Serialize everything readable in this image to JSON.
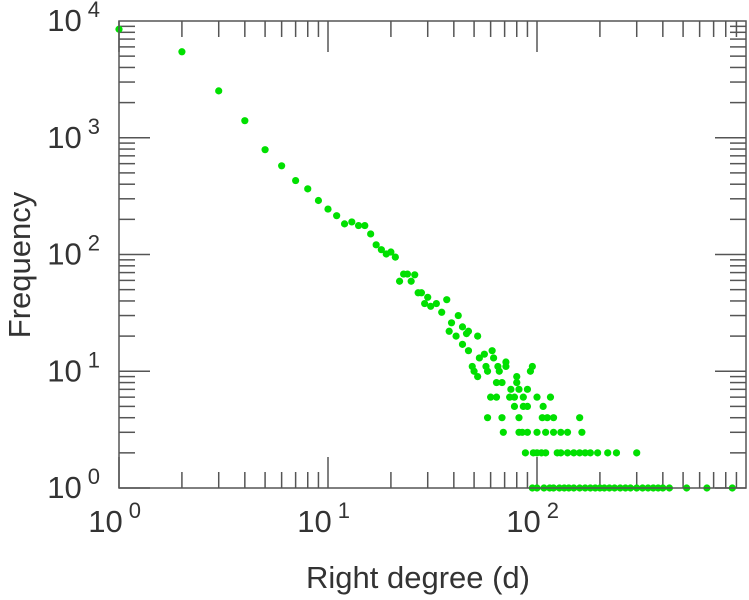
{
  "chart_data": {
    "type": "scatter",
    "title": "",
    "xlabel": "Right degree (d)",
    "ylabel": "Frequency",
    "xscale": "log",
    "yscale": "log",
    "xlim": [
      1,
      1000
    ],
    "ylim": [
      1,
      10000
    ],
    "x_ticks": [
      {
        "base": "10",
        "exp": "0"
      },
      {
        "base": "10",
        "exp": "1"
      },
      {
        "base": "10",
        "exp": "2"
      }
    ],
    "y_ticks": [
      {
        "base": "10",
        "exp": "0"
      },
      {
        "base": "10",
        "exp": "1"
      },
      {
        "base": "10",
        "exp": "2"
      },
      {
        "base": "10",
        "exp": "3"
      },
      {
        "base": "10",
        "exp": "4"
      }
    ],
    "grid": false,
    "color": "#00e000",
    "points": [
      [
        1,
        8500
      ],
      [
        2,
        5450
      ],
      [
        3,
        2520
      ],
      [
        4,
        1400
      ],
      [
        5,
        790
      ],
      [
        6,
        575
      ],
      [
        7,
        430
      ],
      [
        8,
        365
      ],
      [
        9,
        290
      ],
      [
        10,
        245
      ],
      [
        11,
        215
      ],
      [
        12,
        183
      ],
      [
        13,
        190
      ],
      [
        14,
        177
      ],
      [
        15,
        177
      ],
      [
        16,
        150
      ],
      [
        17,
        121
      ],
      [
        18,
        110
      ],
      [
        19,
        101
      ],
      [
        20,
        105
      ],
      [
        21,
        95
      ],
      [
        22,
        59
      ],
      [
        23,
        68
      ],
      [
        24,
        68
      ],
      [
        25,
        59
      ],
      [
        26,
        67
      ],
      [
        27,
        47
      ],
      [
        28,
        47
      ],
      [
        29,
        38
      ],
      [
        30,
        43
      ],
      [
        31,
        36
      ],
      [
        33,
        38
      ],
      [
        35,
        32
      ],
      [
        37,
        41
      ],
      [
        38,
        22
      ],
      [
        39,
        26
      ],
      [
        41,
        20
      ],
      [
        42,
        30
      ],
      [
        44,
        24
      ],
      [
        44,
        17
      ],
      [
        46,
        21
      ],
      [
        47,
        22
      ],
      [
        47,
        15
      ],
      [
        49,
        11
      ],
      [
        50,
        10
      ],
      [
        52,
        20
      ],
      [
        52,
        9
      ],
      [
        53,
        13
      ],
      [
        56,
        14
      ],
      [
        57,
        11
      ],
      [
        58,
        10
      ],
      [
        58,
        4
      ],
      [
        60,
        6
      ],
      [
        61,
        15
      ],
      [
        62,
        13
      ],
      [
        64,
        6
      ],
      [
        64,
        8
      ],
      [
        65,
        11
      ],
      [
        66,
        10
      ],
      [
        68,
        8
      ],
      [
        68,
        4
      ],
      [
        69,
        3
      ],
      [
        71,
        12
      ],
      [
        71,
        11
      ],
      [
        74,
        6
      ],
      [
        75,
        7
      ],
      [
        78,
        6
      ],
      [
        78,
        5
      ],
      [
        80,
        9
      ],
      [
        80,
        8
      ],
      [
        82,
        7
      ],
      [
        82,
        4
      ],
      [
        82,
        3
      ],
      [
        85,
        3
      ],
      [
        86,
        6
      ],
      [
        86,
        5
      ],
      [
        88,
        2
      ],
      [
        90,
        7
      ],
      [
        90,
        5
      ],
      [
        90,
        3
      ],
      [
        93,
        10
      ],
      [
        95,
        11
      ],
      [
        96,
        2
      ],
      [
        100,
        6
      ],
      [
        100,
        3
      ],
      [
        100,
        2
      ],
      [
        105,
        2
      ],
      [
        106,
        4
      ],
      [
        107,
        5
      ],
      [
        110,
        3
      ],
      [
        110,
        2
      ],
      [
        112,
        4
      ],
      [
        116,
        6
      ],
      [
        120,
        3
      ],
      [
        120,
        4
      ],
      [
        125,
        2
      ],
      [
        130,
        3
      ],
      [
        130,
        2
      ],
      [
        140,
        3
      ],
      [
        140,
        2
      ],
      [
        150,
        2
      ],
      [
        160,
        4
      ],
      [
        160,
        2
      ],
      [
        164,
        3
      ],
      [
        170,
        2
      ],
      [
        180,
        2
      ],
      [
        195,
        2
      ],
      [
        218,
        2
      ],
      [
        240,
        2
      ],
      [
        300,
        2
      ],
      [
        95,
        1
      ],
      [
        100,
        1
      ],
      [
        108,
        1
      ],
      [
        115,
        1
      ],
      [
        120,
        1
      ],
      [
        128,
        1
      ],
      [
        135,
        1
      ],
      [
        142,
        1
      ],
      [
        150,
        1
      ],
      [
        160,
        1
      ],
      [
        170,
        1
      ],
      [
        180,
        1
      ],
      [
        190,
        1
      ],
      [
        200,
        1
      ],
      [
        210,
        1
      ],
      [
        222,
        1
      ],
      [
        235,
        1
      ],
      [
        250,
        1
      ],
      [
        265,
        1
      ],
      [
        280,
        1
      ],
      [
        300,
        1
      ],
      [
        320,
        1
      ],
      [
        340,
        1
      ],
      [
        360,
        1
      ],
      [
        380,
        1
      ],
      [
        400,
        1
      ],
      [
        430,
        1
      ],
      [
        520,
        1
      ],
      [
        650,
        1
      ],
      [
        860,
        1
      ]
    ]
  }
}
